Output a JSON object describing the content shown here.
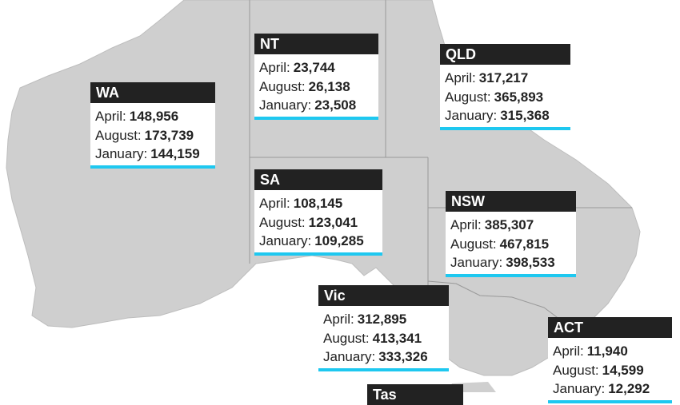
{
  "regions": [
    {
      "name": "WA",
      "rows": [
        {
          "label": "April:",
          "value": "148,956"
        },
        {
          "label": "August:",
          "value": "173,739"
        },
        {
          "label": "January:",
          "value": "144,159"
        }
      ]
    },
    {
      "name": "NT",
      "rows": [
        {
          "label": "April:",
          "value": "23,744"
        },
        {
          "label": "August:",
          "value": "26,138"
        },
        {
          "label": "January:",
          "value": "23,508"
        }
      ]
    },
    {
      "name": "QLD",
      "rows": [
        {
          "label": "April:",
          "value": "317,217"
        },
        {
          "label": "August:",
          "value": "365,893"
        },
        {
          "label": "January:",
          "value": "315,368"
        }
      ]
    },
    {
      "name": "SA",
      "rows": [
        {
          "label": "April:",
          "value": "108,145"
        },
        {
          "label": "August:",
          "value": "123,041"
        },
        {
          "label": "January:",
          "value": "109,285"
        }
      ]
    },
    {
      "name": "NSW",
      "rows": [
        {
          "label": "April:",
          "value": "385,307"
        },
        {
          "label": "August:",
          "value": "467,815"
        },
        {
          "label": "January:",
          "value": "398,533"
        }
      ]
    },
    {
      "name": "Vic",
      "rows": [
        {
          "label": "April:",
          "value": "312,895"
        },
        {
          "label": "August:",
          "value": "413,341"
        },
        {
          "label": "January:",
          "value": "333,326"
        }
      ]
    },
    {
      "name": "ACT",
      "rows": [
        {
          "label": "April:",
          "value": "11,940"
        },
        {
          "label": "August:",
          "value": "14,599"
        },
        {
          "label": "January:",
          "value": "12,292"
        }
      ]
    },
    {
      "name": "Tas",
      "rows": []
    }
  ]
}
